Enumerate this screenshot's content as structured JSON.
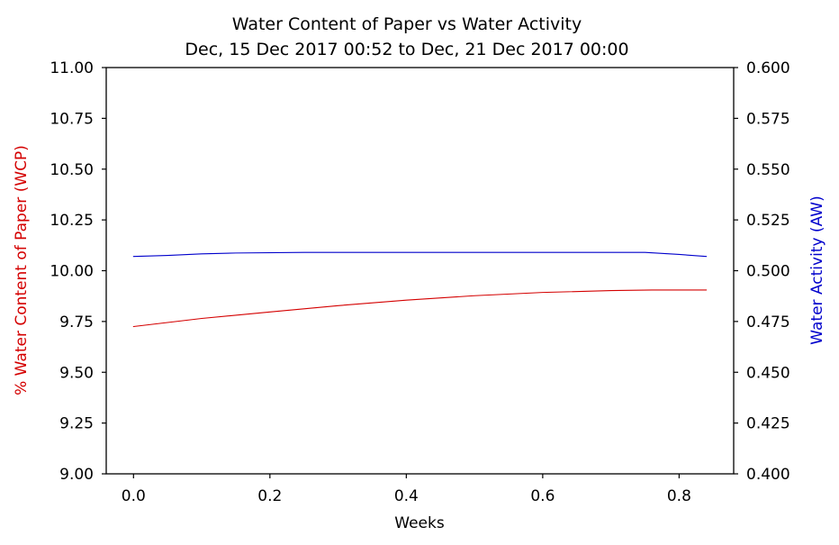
{
  "chart_data": {
    "type": "line",
    "title": "Water Content of Paper vs Water Activity",
    "subtitle": "Dec, 15 Dec 2017 00:52 to Dec, 21 Dec 2017 00:00",
    "xlabel": "Weeks",
    "ylabel_left": "% Water Content of Paper (WCP)",
    "ylabel_right": "Water Activity (AW)",
    "xlim": [
      -0.04,
      0.88
    ],
    "ylim_left": [
      9.0,
      11.0
    ],
    "ylim_right": [
      0.4,
      0.6
    ],
    "x_ticks": [
      "0.0",
      "0.2",
      "0.4",
      "0.6",
      "0.8"
    ],
    "y_ticks_left": [
      "9.00",
      "9.25",
      "9.50",
      "9.75",
      "10.00",
      "10.25",
      "10.50",
      "10.75",
      "11.00"
    ],
    "y_ticks_right": [
      "0.400",
      "0.425",
      "0.450",
      "0.475",
      "0.500",
      "0.525",
      "0.550",
      "0.575",
      "0.600"
    ],
    "grid": false,
    "series": [
      {
        "axis": "left",
        "color": "#d40000",
        "x": [
          0.0,
          0.1,
          0.2,
          0.3,
          0.4,
          0.5,
          0.6,
          0.7,
          0.76,
          0.84
        ],
        "y": [
          9.725,
          9.765,
          9.797,
          9.828,
          9.855,
          9.877,
          9.893,
          9.902,
          9.905,
          9.905
        ]
      },
      {
        "axis": "right",
        "color": "#0000cc",
        "x": [
          0.0,
          0.05,
          0.1,
          0.15,
          0.25,
          0.5,
          0.75,
          0.8,
          0.84
        ],
        "y": [
          0.507,
          0.5075,
          0.5083,
          0.5087,
          0.509,
          0.509,
          0.509,
          0.508,
          0.507
        ]
      }
    ]
  }
}
